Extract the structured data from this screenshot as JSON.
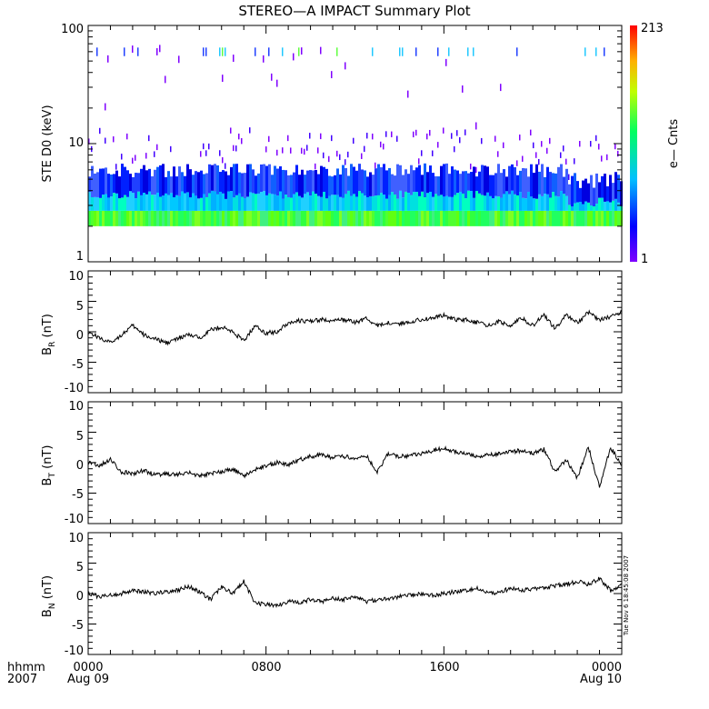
{
  "chart_data": [
    {
      "type": "heatmap",
      "title": "STEREO—A IMPACT Summary Plot",
      "ylabel": "STE D0 (keV)",
      "yscale": "log",
      "ylim": [
        1,
        100
      ],
      "y_ticks": [
        "1",
        "10",
        "100"
      ],
      "colorbar": {
        "label": "e— Cnts",
        "min_label": "1",
        "max_label": "213",
        "range": [
          1,
          213
        ],
        "scale": "log",
        "colors": [
          "#7f00ff",
          "#0000ff",
          "#00c0ff",
          "#00ff80",
          "#ffff00",
          "#ff8000",
          "#ff0000"
        ]
      },
      "bands": [
        {
          "energy_range": [
            2.0,
            2.7
          ],
          "typical_counts": "high",
          "color": "#40ff40"
        },
        {
          "energy_range": [
            2.7,
            3.6
          ],
          "typical_counts": "medium",
          "color": "#00c8ff"
        },
        {
          "energy_range": [
            3.6,
            6.5
          ],
          "typical_counts": "low",
          "color": "#2040ff"
        }
      ]
    },
    {
      "type": "line",
      "ylabel": "B_R (nT)",
      "ylabel_main": "B",
      "ylabel_sub": "R",
      "ylabel_unit": " (nT)",
      "ylim": [
        -10,
        10
      ],
      "y_ticks": [
        "10",
        "5",
        "0",
        "-5",
        "-10"
      ],
      "color": "#000000",
      "series": [
        {
          "x": [
            0.0,
            0.5,
            1.0,
            1.5,
            2.0,
            2.5,
            3.0,
            3.5,
            4.0,
            4.5,
            5.0,
            5.5,
            6.0,
            6.5,
            7.0,
            7.5,
            8.0,
            8.5,
            9.0,
            9.5,
            10.0,
            10.5,
            11.0,
            11.5,
            12.0,
            12.5,
            13.0,
            13.5,
            14.0,
            14.5,
            15.0,
            15.5,
            16.0,
            16.5,
            17.0,
            17.5,
            18.0,
            18.5,
            19.0,
            19.5,
            20.0,
            20.5,
            21.0,
            21.5,
            22.0,
            22.5,
            23.0,
            23.5,
            24.0
          ],
          "values": [
            0.0,
            -1.0,
            -1.8,
            -0.5,
            1.0,
            -0.5,
            -1.2,
            -1.8,
            -1.2,
            -0.5,
            -1.0,
            0.3,
            0.8,
            0.0,
            -1.5,
            1.0,
            -0.2,
            0.0,
            1.5,
            1.8,
            1.7,
            2.0,
            1.8,
            2.0,
            1.5,
            2.2,
            1.0,
            1.5,
            1.3,
            1.7,
            2.0,
            2.3,
            2.7,
            2.0,
            2.0,
            1.5,
            1.0,
            1.7,
            1.0,
            2.3,
            1.0,
            2.8,
            0.5,
            2.8,
            1.5,
            3.2,
            2.0,
            2.5,
            3.2
          ]
        }
      ]
    },
    {
      "type": "line",
      "ylabel": "B_T (nT)",
      "ylabel_main": "B",
      "ylabel_sub": "T",
      "ylabel_unit": " (nT)",
      "ylim": [
        -10,
        10
      ],
      "y_ticks": [
        "10",
        "5",
        "0",
        "-5",
        "-10"
      ],
      "color": "#000000",
      "series": [
        {
          "x": [
            0.0,
            0.5,
            1.0,
            1.5,
            2.0,
            2.5,
            3.0,
            3.5,
            4.0,
            4.5,
            5.0,
            5.5,
            6.0,
            6.5,
            7.0,
            7.5,
            8.0,
            8.5,
            9.0,
            9.5,
            10.0,
            10.5,
            11.0,
            11.5,
            12.0,
            12.5,
            13.0,
            13.5,
            14.0,
            14.5,
            15.0,
            15.5,
            16.0,
            16.5,
            17.0,
            17.5,
            18.0,
            18.5,
            19.0,
            19.5,
            20.0,
            20.5,
            21.0,
            21.5,
            22.0,
            22.5,
            23.0,
            23.5,
            24.0
          ],
          "values": [
            0.0,
            -0.5,
            0.5,
            -1.5,
            -1.8,
            -1.3,
            -2.0,
            -1.8,
            -2.0,
            -1.5,
            -2.2,
            -1.8,
            -1.5,
            -1.0,
            -2.3,
            -1.2,
            -0.5,
            0.0,
            -0.3,
            0.5,
            1.0,
            1.3,
            0.8,
            1.0,
            0.8,
            1.2,
            -1.5,
            1.5,
            1.0,
            1.2,
            1.5,
            2.0,
            2.3,
            1.8,
            1.5,
            1.0,
            1.2,
            1.5,
            1.8,
            2.0,
            1.5,
            2.2,
            -1.5,
            0.5,
            -2.5,
            2.5,
            -4.0,
            2.5,
            -0.5
          ]
        }
      ]
    },
    {
      "type": "line",
      "ylabel": "B_N (nT)",
      "ylabel_main": "B",
      "ylabel_sub": "N",
      "ylabel_unit": " (nT)",
      "ylim": [
        -10,
        10
      ],
      "y_ticks": [
        "10",
        "5",
        "0",
        "-5",
        "-10"
      ],
      "x_ticks": [
        "0000",
        "0800",
        "1600",
        "0000"
      ],
      "x_date_labels": [
        "Aug 09",
        "Aug 10"
      ],
      "x_row_labels": [
        "hhmm",
        "2007"
      ],
      "xlim_hours": [
        0,
        24
      ],
      "color": "#000000",
      "series": [
        {
          "x": [
            0.0,
            0.5,
            1.0,
            1.5,
            2.0,
            2.5,
            3.0,
            3.5,
            4.0,
            4.5,
            5.0,
            5.5,
            6.0,
            6.5,
            7.0,
            7.5,
            8.0,
            8.5,
            9.0,
            9.5,
            10.0,
            10.5,
            11.0,
            11.5,
            12.0,
            12.5,
            13.0,
            13.5,
            14.0,
            14.5,
            15.0,
            15.5,
            16.0,
            16.5,
            17.0,
            17.5,
            18.0,
            18.5,
            19.0,
            19.5,
            20.0,
            20.5,
            21.0,
            21.5,
            22.0,
            22.5,
            23.0,
            23.5,
            24.0
          ],
          "values": [
            0.0,
            -0.5,
            -0.3,
            0.0,
            0.5,
            0.3,
            0.0,
            0.3,
            0.5,
            1.2,
            0.3,
            -1.0,
            1.2,
            0.0,
            2.0,
            -1.5,
            -1.8,
            -2.0,
            -1.3,
            -1.5,
            -1.0,
            -1.3,
            -0.8,
            -1.0,
            -0.5,
            -1.3,
            -1.0,
            -0.8,
            -0.5,
            -0.3,
            0.0,
            -0.3,
            0.0,
            0.3,
            0.5,
            0.8,
            0.2,
            0.0,
            1.0,
            0.5,
            0.8,
            1.0,
            1.3,
            1.5,
            2.0,
            1.5,
            2.5,
            0.5,
            1.5
          ]
        }
      ],
      "side_annotation": "Tue Nov  6 18:45:08 2007"
    }
  ]
}
